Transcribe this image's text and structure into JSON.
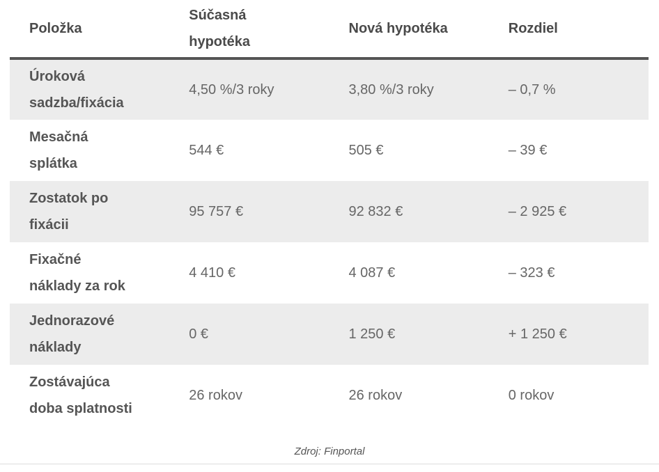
{
  "table": {
    "headers": [
      "Položka",
      "Súčasná\nhypotéka",
      "Nová hypotéka",
      "Rozdiel"
    ],
    "rows": [
      {
        "label": "Úroková\nsadzba/fixácia",
        "current": "4,50 %/3 roky",
        "new": "3,80 %/3 roky",
        "diff": "– 0,7 %"
      },
      {
        "label": "Mesačná\nsplátka",
        "current": "544 €",
        "new": "505 €",
        "diff": "– 39 €"
      },
      {
        "label": "Zostatok po\nfixácii",
        "current": "95 757 €",
        "new": "92 832 €",
        "diff": "– 2 925 €"
      },
      {
        "label": "Fixačné\nnáklady za rok",
        "current": "4 410 €",
        "new": "4 087 €",
        "diff": "– 323 €"
      },
      {
        "label": "Jednorazové\nnáklady",
        "current": "0 €",
        "new": "1 250 €",
        "diff": "+ 1 250 €"
      },
      {
        "label": "Zostávajúca\ndoba splatnosti",
        "current": "26 rokov",
        "new": "26 rokov",
        "diff": "0 rokov"
      }
    ],
    "source_note": "Zdroj: Finportal"
  },
  "colors": {
    "stripe_row_bg": "#ececec",
    "header_border": "#555555",
    "label_text": "#555555",
    "value_text": "#666666",
    "bottom_divider": "#dddddd"
  },
  "chart_data": {
    "type": "table",
    "title": "",
    "columns": [
      "Položka",
      "Súčasná hypotéka",
      "Nová hypotéka",
      "Rozdiel"
    ],
    "rows": [
      [
        "Úroková sadzba/fixácia",
        "4,50 %/3 roky",
        "3,80 %/3 roky",
        "– 0,7 %"
      ],
      [
        "Mesačná splátka",
        "544 €",
        "505 €",
        "– 39 €"
      ],
      [
        "Zostatok po fixácii",
        "95 757 €",
        "92 832 €",
        "– 2 925 €"
      ],
      [
        "Fixačné náklady za rok",
        "4 410 €",
        "4 087 €",
        "– 323 €"
      ],
      [
        "Jednorazové náklady",
        "0 €",
        "1 250 €",
        "+ 1 250 €"
      ],
      [
        "Zostávajúca doba splatnosti",
        "26 rokov",
        "26 rokov",
        "0 rokov"
      ]
    ],
    "source": "Zdroj: Finportal"
  }
}
